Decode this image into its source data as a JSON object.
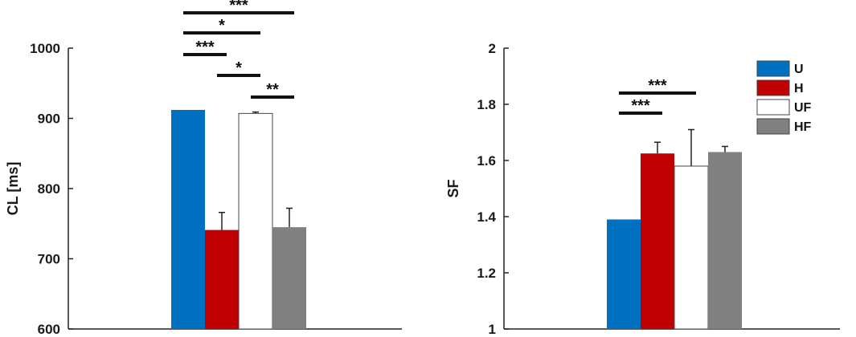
{
  "chart_data": [
    {
      "type": "bar",
      "categories": [
        "U",
        "H",
        "UF",
        "HF"
      ],
      "values": [
        912,
        741,
        907,
        745
      ],
      "errors": [
        0,
        25,
        2,
        27
      ],
      "colors": [
        "#0070c0",
        "#c00000",
        "#ffffff",
        "#808080"
      ],
      "xlabel": "",
      "ylabel": "CL [ms]",
      "ylim": [
        600,
        1000
      ],
      "yticks": [
        600,
        700,
        800,
        900,
        1000
      ],
      "yticklabels": [
        "600",
        "700",
        "800",
        "900",
        "1000"
      ],
      "grid": false,
      "significance": [
        {
          "from": "U",
          "to": "HF",
          "label": "***"
        },
        {
          "from": "U",
          "to": "UF",
          "label": "*"
        },
        {
          "from": "U",
          "to": "H",
          "label": "***"
        },
        {
          "from": "H",
          "to": "UF",
          "label": "*"
        },
        {
          "from": "UF",
          "to": "HF",
          "label": "**"
        }
      ]
    },
    {
      "type": "bar",
      "categories": [
        "U",
        "H",
        "UF",
        "HF"
      ],
      "values": [
        1.39,
        1.625,
        1.58,
        1.63
      ],
      "errors": [
        0,
        0.04,
        0.13,
        0.02
      ],
      "colors": [
        "#0070c0",
        "#c00000",
        "#ffffff",
        "#808080"
      ],
      "xlabel": "",
      "ylabel": "SF",
      "ylim": [
        1,
        2
      ],
      "yticks": [
        1,
        1.2,
        1.4,
        1.6,
        1.8,
        2
      ],
      "yticklabels": [
        "1",
        "1.2",
        "1.4",
        "1.6",
        "1.8",
        "2"
      ],
      "grid": false,
      "legend": {
        "position": "top-right",
        "entries": [
          "U",
          "H",
          "UF",
          "HF"
        ]
      },
      "significance": [
        {
          "from": "U",
          "to": "UF",
          "label": "***"
        },
        {
          "from": "U",
          "to": "H",
          "label": "***"
        }
      ]
    }
  ]
}
